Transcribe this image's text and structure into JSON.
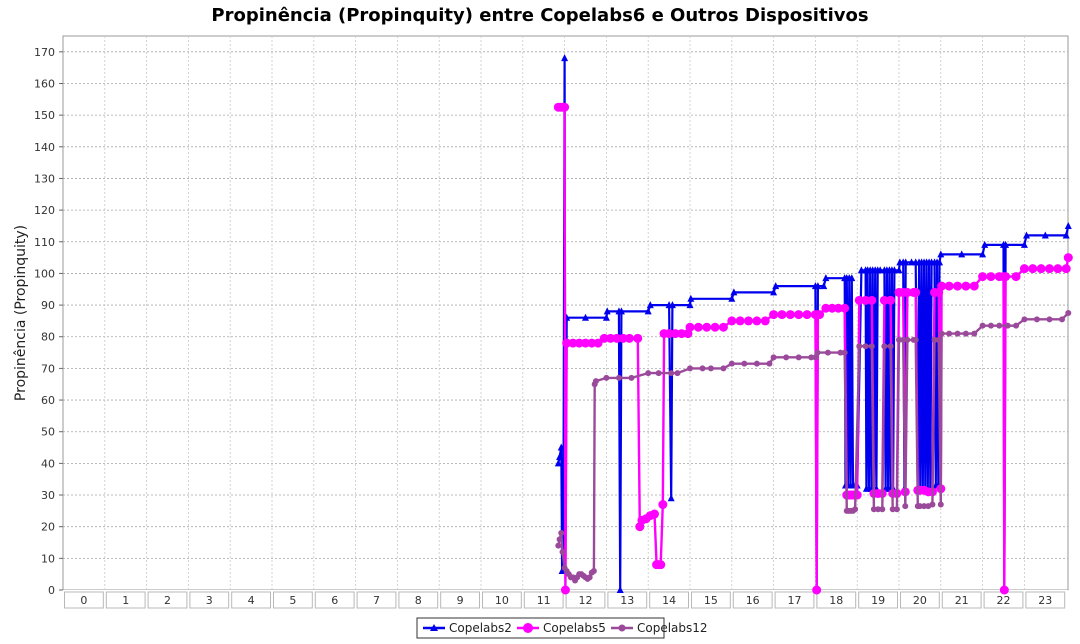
{
  "chart_data": {
    "type": "line",
    "title": "Propinência (Propinquity) entre Copelabs6 e Outros Dispositivos",
    "xlabel": "",
    "ylabel": "Propinência (Propinquity)",
    "ylim": [
      0,
      175
    ],
    "y_ticks": [
      0,
      10,
      20,
      30,
      40,
      50,
      60,
      70,
      80,
      90,
      100,
      110,
      120,
      130,
      140,
      150,
      160,
      170
    ],
    "categories": [
      "0",
      "1",
      "2",
      "3",
      "4",
      "5",
      "6",
      "7",
      "8",
      "9",
      "10",
      "11",
      "12",
      "13",
      "14",
      "15",
      "16",
      "17",
      "18",
      "19",
      "20",
      "21",
      "22",
      "23"
    ],
    "grid": true,
    "legend": "bottom",
    "series": [
      {
        "name": "Copelabs2",
        "color": "#0000ee",
        "marker": "triangle",
        "points": [
          [
            11.35,
            40
          ],
          [
            11.38,
            42
          ],
          [
            11.42,
            45
          ],
          [
            11.44,
            6
          ],
          [
            11.47,
            6
          ],
          [
            11.5,
            168
          ],
          [
            11.52,
            6
          ],
          [
            11.55,
            86
          ],
          [
            12.0,
            86
          ],
          [
            12.5,
            86
          ],
          [
            12.52,
            88
          ],
          [
            12.8,
            88
          ],
          [
            12.83,
            0
          ],
          [
            12.86,
            88
          ],
          [
            13.5,
            88
          ],
          [
            13.55,
            90
          ],
          [
            14.0,
            90
          ],
          [
            14.05,
            29
          ],
          [
            14.08,
            90
          ],
          [
            14.5,
            90
          ],
          [
            14.52,
            92
          ],
          [
            15.5,
            92
          ],
          [
            15.55,
            94
          ],
          [
            16.5,
            94
          ],
          [
            16.55,
            96
          ],
          [
            17.5,
            96
          ],
          [
            17.53,
            0
          ],
          [
            17.56,
            96
          ],
          [
            17.7,
            96
          ],
          [
            17.75,
            98.5
          ],
          [
            18.2,
            98.5
          ],
          [
            18.22,
            33
          ],
          [
            18.25,
            98.5
          ],
          [
            18.28,
            33
          ],
          [
            18.31,
            98.5
          ],
          [
            18.34,
            33
          ],
          [
            18.37,
            98.5
          ],
          [
            18.4,
            33
          ],
          [
            18.45,
            33
          ],
          [
            18.5,
            33
          ],
          [
            18.6,
            101
          ],
          [
            18.7,
            101
          ],
          [
            18.72,
            32
          ],
          [
            18.75,
            101
          ],
          [
            18.78,
            32
          ],
          [
            18.81,
            101
          ],
          [
            18.84,
            32
          ],
          [
            18.87,
            101
          ],
          [
            18.9,
            32
          ],
          [
            18.93,
            101
          ],
          [
            18.96,
            32
          ],
          [
            18.99,
            101
          ],
          [
            19.05,
            101
          ],
          [
            19.15,
            101
          ],
          [
            19.18,
            32
          ],
          [
            19.21,
            101
          ],
          [
            19.24,
            32
          ],
          [
            19.27,
            101
          ],
          [
            19.3,
            32
          ],
          [
            19.33,
            101
          ],
          [
            19.36,
            32
          ],
          [
            19.39,
            101
          ],
          [
            19.5,
            101
          ],
          [
            19.52,
            103.5
          ],
          [
            19.6,
            103.5
          ],
          [
            19.63,
            32
          ],
          [
            19.66,
            103.5
          ],
          [
            19.8,
            103.5
          ],
          [
            19.9,
            103.5
          ],
          [
            19.95,
            32
          ],
          [
            19.98,
            103.5
          ],
          [
            20.01,
            32
          ],
          [
            20.04,
            103.5
          ],
          [
            20.07,
            32
          ],
          [
            20.1,
            103.5
          ],
          [
            20.13,
            32
          ],
          [
            20.16,
            103.5
          ],
          [
            20.19,
            32
          ],
          [
            20.22,
            103.5
          ],
          [
            20.25,
            32
          ],
          [
            20.28,
            103.5
          ],
          [
            20.35,
            103.5
          ],
          [
            20.38,
            33
          ],
          [
            20.41,
            103.5
          ],
          [
            20.44,
            33
          ],
          [
            20.47,
            103.5
          ],
          [
            20.5,
            106
          ],
          [
            21.0,
            106
          ],
          [
            21.5,
            106
          ],
          [
            21.55,
            109
          ],
          [
            22.0,
            109
          ],
          [
            22.02,
            0
          ],
          [
            22.05,
            109
          ],
          [
            22.5,
            109
          ],
          [
            22.55,
            112
          ],
          [
            23.0,
            112
          ],
          [
            23.5,
            112
          ],
          [
            23.55,
            115
          ]
        ]
      },
      {
        "name": "Copelabs5",
        "color": "#ff00ff",
        "marker": "circle",
        "points": [
          [
            11.35,
            152.5
          ],
          [
            11.4,
            152.5
          ],
          [
            11.45,
            152.5
          ],
          [
            11.5,
            152.5
          ],
          [
            11.52,
            0
          ],
          [
            11.55,
            78
          ],
          [
            11.7,
            78
          ],
          [
            11.85,
            78
          ],
          [
            12.0,
            78
          ],
          [
            12.15,
            78
          ],
          [
            12.3,
            78
          ],
          [
            12.45,
            79.5
          ],
          [
            12.6,
            79.5
          ],
          [
            12.75,
            79.5
          ],
          [
            12.9,
            79.5
          ],
          [
            13.05,
            79.5
          ],
          [
            13.25,
            79.5
          ],
          [
            13.3,
            20
          ],
          [
            13.35,
            22
          ],
          [
            13.45,
            22.5
          ],
          [
            13.55,
            23.5
          ],
          [
            13.65,
            24
          ],
          [
            13.7,
            8
          ],
          [
            13.75,
            8
          ],
          [
            13.8,
            8
          ],
          [
            13.85,
            27
          ],
          [
            13.88,
            81
          ],
          [
            14.0,
            81
          ],
          [
            14.15,
            81
          ],
          [
            14.3,
            81
          ],
          [
            14.45,
            81
          ],
          [
            14.5,
            83
          ],
          [
            14.7,
            83
          ],
          [
            14.9,
            83
          ],
          [
            15.1,
            83
          ],
          [
            15.3,
            83
          ],
          [
            15.5,
            85
          ],
          [
            15.7,
            85
          ],
          [
            15.9,
            85
          ],
          [
            16.1,
            85
          ],
          [
            16.3,
            85
          ],
          [
            16.5,
            87
          ],
          [
            16.7,
            87
          ],
          [
            16.9,
            87
          ],
          [
            17.1,
            87
          ],
          [
            17.3,
            87
          ],
          [
            17.5,
            87
          ],
          [
            17.53,
            0
          ],
          [
            17.56,
            87
          ],
          [
            17.6,
            87
          ],
          [
            17.75,
            89
          ],
          [
            17.9,
            89
          ],
          [
            18.05,
            89
          ],
          [
            18.2,
            89
          ],
          [
            18.25,
            30
          ],
          [
            18.3,
            30
          ],
          [
            18.35,
            30
          ],
          [
            18.4,
            30
          ],
          [
            18.45,
            30
          ],
          [
            18.5,
            30
          ],
          [
            18.55,
            91.5
          ],
          [
            18.7,
            91.5
          ],
          [
            18.85,
            91.5
          ],
          [
            18.9,
            30.5
          ],
          [
            19.0,
            30.5
          ],
          [
            19.1,
            30.5
          ],
          [
            19.15,
            91.5
          ],
          [
            19.3,
            91.5
          ],
          [
            19.35,
            30.5
          ],
          [
            19.45,
            30.5
          ],
          [
            19.5,
            94
          ],
          [
            19.6,
            94
          ],
          [
            19.65,
            31
          ],
          [
            19.7,
            94
          ],
          [
            19.85,
            94
          ],
          [
            19.9,
            94
          ],
          [
            19.95,
            31.5
          ],
          [
            20.0,
            31.5
          ],
          [
            20.1,
            31.5
          ],
          [
            20.2,
            31
          ],
          [
            20.3,
            31
          ],
          [
            20.35,
            94
          ],
          [
            20.45,
            94
          ],
          [
            20.5,
            32
          ],
          [
            20.52,
            96
          ],
          [
            20.7,
            96
          ],
          [
            20.9,
            96
          ],
          [
            21.1,
            96
          ],
          [
            21.3,
            96
          ],
          [
            21.5,
            99
          ],
          [
            21.7,
            99
          ],
          [
            21.9,
            99
          ],
          [
            22.0,
            99
          ],
          [
            22.02,
            0
          ],
          [
            22.05,
            99
          ],
          [
            22.3,
            99
          ],
          [
            22.5,
            101.5
          ],
          [
            22.7,
            101.5
          ],
          [
            22.9,
            101.5
          ],
          [
            23.1,
            101.5
          ],
          [
            23.3,
            101.5
          ],
          [
            23.5,
            101.5
          ],
          [
            23.55,
            105
          ]
        ]
      },
      {
        "name": "Copelabs12",
        "color": "#9b4a9b",
        "marker": "circle",
        "points": [
          [
            11.35,
            14
          ],
          [
            11.38,
            16
          ],
          [
            11.42,
            18
          ],
          [
            11.45,
            12
          ],
          [
            11.5,
            7
          ],
          [
            11.55,
            6
          ],
          [
            11.6,
            5
          ],
          [
            11.65,
            4
          ],
          [
            11.7,
            4
          ],
          [
            11.75,
            3
          ],
          [
            11.8,
            4
          ],
          [
            11.85,
            5
          ],
          [
            11.9,
            5
          ],
          [
            11.95,
            4.5
          ],
          [
            12.0,
            4
          ],
          [
            12.05,
            3.5
          ],
          [
            12.1,
            4
          ],
          [
            12.15,
            5.5
          ],
          [
            12.2,
            6
          ],
          [
            12.22,
            65
          ],
          [
            12.25,
            66
          ],
          [
            12.5,
            67
          ],
          [
            12.8,
            67
          ],
          [
            13.1,
            67
          ],
          [
            13.5,
            68.5
          ],
          [
            13.75,
            68.5
          ],
          [
            14.05,
            68.5
          ],
          [
            14.2,
            68.5
          ],
          [
            14.5,
            70
          ],
          [
            14.8,
            70
          ],
          [
            15.0,
            70
          ],
          [
            15.3,
            70
          ],
          [
            15.5,
            71.5
          ],
          [
            15.8,
            71.5
          ],
          [
            16.1,
            71.5
          ],
          [
            16.4,
            71.5
          ],
          [
            16.5,
            73.5
          ],
          [
            16.8,
            73.5
          ],
          [
            17.1,
            73.5
          ],
          [
            17.4,
            73.5
          ],
          [
            17.5,
            73.5
          ],
          [
            17.55,
            75
          ],
          [
            17.8,
            75
          ],
          [
            18.1,
            75
          ],
          [
            18.2,
            75
          ],
          [
            18.25,
            25
          ],
          [
            18.3,
            25
          ],
          [
            18.35,
            25
          ],
          [
            18.4,
            25
          ],
          [
            18.45,
            25.5
          ],
          [
            18.55,
            77
          ],
          [
            18.7,
            77
          ],
          [
            18.85,
            77
          ],
          [
            18.9,
            25.5
          ],
          [
            19.0,
            25.5
          ],
          [
            19.1,
            25.5
          ],
          [
            19.15,
            77
          ],
          [
            19.3,
            77
          ],
          [
            19.35,
            25.5
          ],
          [
            19.45,
            25.5
          ],
          [
            19.5,
            79
          ],
          [
            19.6,
            79
          ],
          [
            19.65,
            26.5
          ],
          [
            19.7,
            79
          ],
          [
            19.85,
            79
          ],
          [
            19.9,
            79
          ],
          [
            19.95,
            26.5
          ],
          [
            20.0,
            26.5
          ],
          [
            20.1,
            26.5
          ],
          [
            20.2,
            26.5
          ],
          [
            20.3,
            27
          ],
          [
            20.35,
            79
          ],
          [
            20.45,
            79
          ],
          [
            20.5,
            27
          ],
          [
            20.52,
            81
          ],
          [
            20.7,
            81
          ],
          [
            20.9,
            81
          ],
          [
            21.1,
            81
          ],
          [
            21.3,
            81
          ],
          [
            21.5,
            83.5
          ],
          [
            21.7,
            83.5
          ],
          [
            21.9,
            83.5
          ],
          [
            22.1,
            83.5
          ],
          [
            22.3,
            83.5
          ],
          [
            22.5,
            85.5
          ],
          [
            22.8,
            85.5
          ],
          [
            23.1,
            85.5
          ],
          [
            23.4,
            85.5
          ],
          [
            23.55,
            87.5
          ]
        ]
      }
    ]
  }
}
